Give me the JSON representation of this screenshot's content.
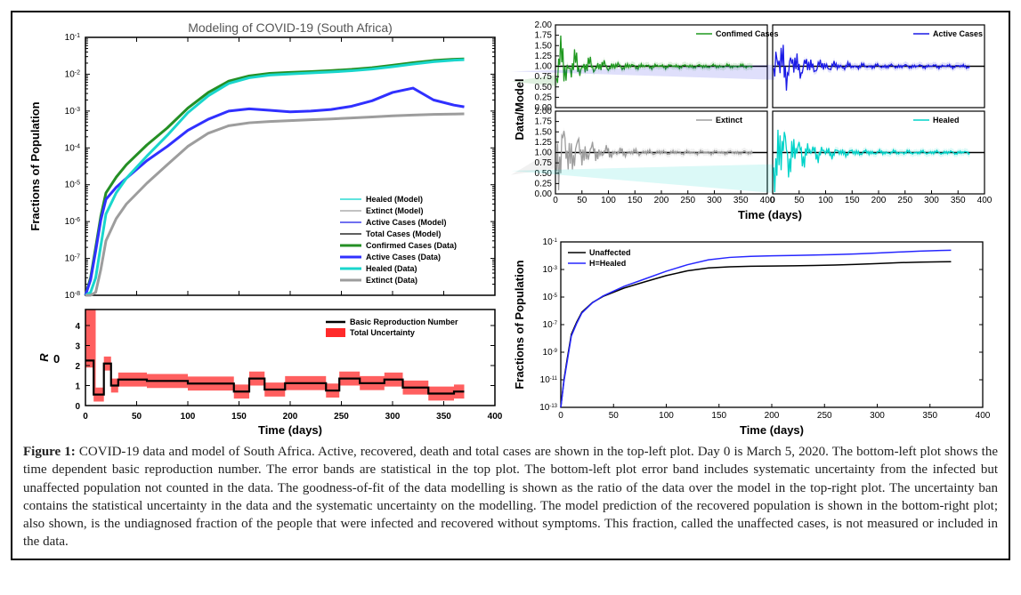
{
  "caption_lead": "Figure 1:",
  "caption_body": " COVID-19 data and model of South Africa. Active, recovered, death and total cases are shown in the top-left plot. Day 0 is March 5, 2020. The bottom-left plot shows the time dependent basic reproduction number. The error bands are statistical in the top plot. The bottom-left plot error band includes systematic uncertainty from the infected but unaffected population not counted in the data. The goodness-of-fit of the data modelling is shown as the ratio of the data over the model in the top-right plot. The uncertainty ban contains the statistical uncertainty in the data and the systematic uncertainty on the modelling. The model prediction of the recovered population is shown in the bottom-right plot; also shown, is the undiagnosed fraction of the people that were infected and recovered without symptoms. This fraction, called the unaffected cases, is not measured or included in the data.",
  "main_plot": {
    "title": "Modeling of COVID-19 (South Africa)",
    "xlabel": "Time (days)",
    "ylabel": "Fractions of Population",
    "xlim": [
      0,
      400
    ],
    "xtick_step": 50,
    "ylim_log_exp": [
      -8,
      -1
    ],
    "series": [
      {
        "name": "Healed (Model)",
        "color": "#00d3c9",
        "lw": 1.2,
        "data": "healed_model"
      },
      {
        "name": "Extinct (Model)",
        "color": "#9d9d9d",
        "lw": 1.2,
        "data": "extinct_model"
      },
      {
        "name": "Active Cases (Model)",
        "color": "#1a1ae6",
        "lw": 1.2,
        "data": "active_model"
      },
      {
        "name": "Total Cases (Model)",
        "color": "#000000",
        "lw": 1.2,
        "data": "total_model"
      },
      {
        "name": "Confirmed Cases (Data)",
        "color": "#248f24",
        "lw": 3.0,
        "data": "confirmed_data"
      },
      {
        "name": "Active Cases (Data)",
        "color": "#3030ff",
        "lw": 3.0,
        "data": "active_data"
      },
      {
        "name": "Healed (Data)",
        "color": "#19d6cc",
        "lw": 3.0,
        "data": "healed_data"
      },
      {
        "name": "Extinct (Data)",
        "color": "#9d9d9d",
        "lw": 3.0,
        "data": "extinct_data"
      }
    ],
    "curves": {
      "x": [
        0,
        5,
        10,
        15,
        20,
        30,
        40,
        60,
        80,
        100,
        120,
        140,
        160,
        180,
        200,
        220,
        240,
        260,
        280,
        300,
        320,
        340,
        360,
        370
      ],
      "confirmed_data": [
        1e-08,
        3e-08,
        2e-07,
        1.4e-06,
        6e-06,
        1.6e-05,
        3.5e-05,
        0.00012,
        0.00035,
        0.0012,
        0.0032,
        0.0065,
        0.009,
        0.0105,
        0.0112,
        0.0118,
        0.0125,
        0.0135,
        0.015,
        0.0175,
        0.0205,
        0.0235,
        0.0255,
        0.026
      ],
      "total_model": [
        1e-08,
        3e-08,
        2e-07,
        1.4e-06,
        6e-06,
        1.6e-05,
        3.6e-05,
        0.000125,
        0.00036,
        0.00125,
        0.0033,
        0.0066,
        0.0091,
        0.0106,
        0.0113,
        0.0119,
        0.0126,
        0.0136,
        0.0151,
        0.0176,
        0.0206,
        0.0236,
        0.0256,
        0.0261
      ],
      "healed_data": [
        1e-08,
        1.2e-08,
        3e-08,
        2.2e-07,
        1.6e-06,
        6e-06,
        1.5e-05,
        6e-05,
        0.00022,
        0.0009,
        0.0026,
        0.0056,
        0.008,
        0.0095,
        0.0102,
        0.0108,
        0.0115,
        0.0124,
        0.0138,
        0.016,
        0.0188,
        0.0218,
        0.024,
        0.0248
      ],
      "healed_model": [
        1e-08,
        1.2e-08,
        3e-08,
        2.2e-07,
        1.6e-06,
        6e-06,
        1.55e-05,
        6.2e-05,
        0.000225,
        0.00092,
        0.00265,
        0.00565,
        0.00805,
        0.00955,
        0.01025,
        0.01085,
        0.01155,
        0.01245,
        0.01385,
        0.01605,
        0.01885,
        0.02185,
        0.02405,
        0.02485
      ],
      "active_data": [
        1e-08,
        2.6e-08,
        1.6e-07,
        1.1e-06,
        4e-06,
        8.5e-06,
        1.5e-05,
        4.5e-05,
        0.00011,
        0.0003,
        0.0006,
        0.001,
        0.00115,
        0.00105,
        0.00095,
        0.001,
        0.0011,
        0.00135,
        0.0019,
        0.0032,
        0.0042,
        0.002,
        0.00145,
        0.0013
      ],
      "active_model": [
        1e-08,
        2.6e-08,
        1.6e-07,
        1.1e-06,
        4e-06,
        8.6e-06,
        1.52e-05,
        4.55e-05,
        0.000112,
        0.000305,
        0.00061,
        0.00102,
        0.00117,
        0.00107,
        0.00096,
        0.00101,
        0.00111,
        0.00136,
        0.00192,
        0.00322,
        0.00422,
        0.00202,
        0.00146,
        0.00131
      ],
      "extinct_data": [
        1e-08,
        1e-08,
        1.2e-08,
        5e-08,
        3e-07,
        1.2e-06,
        3e-06,
        1.1e-05,
        3.5e-05,
        0.00011,
        0.00025,
        0.0004,
        0.00048,
        0.00052,
        0.00055,
        0.00058,
        0.00061,
        0.00065,
        0.00069,
        0.00074,
        0.00078,
        0.00081,
        0.00083,
        0.00084
      ],
      "extinct_model": [
        1e-08,
        1e-08,
        1.2e-08,
        5e-08,
        3e-07,
        1.2e-06,
        3e-06,
        1.12e-05,
        3.55e-05,
        0.000112,
        0.000252,
        0.000402,
        0.000482,
        0.000522,
        0.000552,
        0.000582,
        0.000612,
        0.000652,
        0.000692,
        0.000742,
        0.000782,
        0.000812,
        0.000832,
        0.000842
      ]
    }
  },
  "r0_plot": {
    "xlabel": "Time (days)",
    "ylabel": "R₀",
    "xlim": [
      0,
      400
    ],
    "xtick_step": 50,
    "ylim": [
      0,
      4.8
    ],
    "yticks": [
      0,
      1,
      2,
      3,
      4
    ],
    "legend": [
      {
        "label": "Basic Reproduction Number",
        "color": "#000000"
      },
      {
        "label": "Total Uncertainty",
        "color": "#ff2a2a"
      }
    ],
    "x": [
      0,
      8,
      8,
      18,
      18,
      25,
      25,
      32,
      32,
      60,
      60,
      100,
      100,
      145,
      145,
      160,
      160,
      175,
      175,
      195,
      195,
      235,
      235,
      248,
      248,
      268,
      268,
      292,
      292,
      310,
      310,
      335,
      335,
      360,
      360,
      370
    ],
    "y": [
      2.25,
      2.25,
      0.55,
      0.55,
      2.1,
      2.1,
      1.0,
      1.0,
      1.3,
      1.3,
      1.23,
      1.23,
      1.1,
      1.1,
      0.7,
      0.7,
      1.35,
      1.35,
      0.8,
      0.8,
      1.12,
      1.12,
      0.75,
      0.75,
      1.35,
      1.35,
      1.12,
      1.12,
      1.3,
      1.3,
      0.9,
      0.9,
      0.6,
      0.6,
      0.7,
      0.7
    ],
    "band": 0.35,
    "band_upper_left": [
      4.8,
      4.8,
      4.8,
      4.8
    ]
  },
  "ratio_panels": {
    "xlabel": "Time (days)",
    "ylabel": "Data/Model",
    "xlim": [
      0,
      400
    ],
    "xtick_step": 50,
    "ylim": [
      0,
      2.0
    ],
    "yticks": [
      0.0,
      0.25,
      0.5,
      0.75,
      1.0,
      1.25,
      1.5,
      1.75,
      2.0
    ],
    "panels": [
      {
        "label": "Confimed Cases",
        "color": "#1f981f"
      },
      {
        "label": "Active Cases",
        "color": "#1a1ae6"
      },
      {
        "label": "Extinct",
        "color": "#9d9d9d"
      },
      {
        "label": "Healed",
        "color": "#00d3c9"
      }
    ]
  },
  "unaffected_plot": {
    "xlabel": "Time (days)",
    "ylabel": "Fractions of Population",
    "xlim": [
      0,
      400
    ],
    "xtick_step": 50,
    "ylim_log_exp": [
      -13,
      -1
    ],
    "ytick_step_exp": 2,
    "legend": [
      {
        "label": "Unaffected",
        "color": "#000000"
      },
      {
        "label": "H=Healed",
        "color": "#2626ff"
      }
    ],
    "x": [
      0,
      3,
      6,
      10,
      15,
      20,
      30,
      40,
      60,
      80,
      100,
      120,
      140,
      160,
      180,
      200,
      220,
      240,
      260,
      280,
      300,
      320,
      340,
      360,
      370
    ],
    "unaffected": [
      1e-13,
      1e-11,
      3e-10,
      2e-08,
      1.5e-07,
      8e-07,
      4e-06,
      1.1e-05,
      4.5e-05,
      0.00013,
      0.00036,
      0.0008,
      0.0013,
      0.00155,
      0.0017,
      0.00178,
      0.00185,
      0.00195,
      0.0021,
      0.00235,
      0.0027,
      0.0031,
      0.0034,
      0.0036,
      0.00365
    ],
    "healed": [
      1e-13,
      8e-12,
      2e-10,
      1.5e-08,
      1.2e-07,
      7e-07,
      3.8e-06,
      1.2e-05,
      6e-05,
      0.00021,
      0.00075,
      0.0022,
      0.005,
      0.0075,
      0.009,
      0.0098,
      0.0104,
      0.0111,
      0.012,
      0.0134,
      0.0155,
      0.0183,
      0.0214,
      0.024,
      0.025
    ]
  },
  "colors": {
    "axis": "#000000",
    "grid": "#dddddd",
    "figure_bg": "#ffffff"
  }
}
